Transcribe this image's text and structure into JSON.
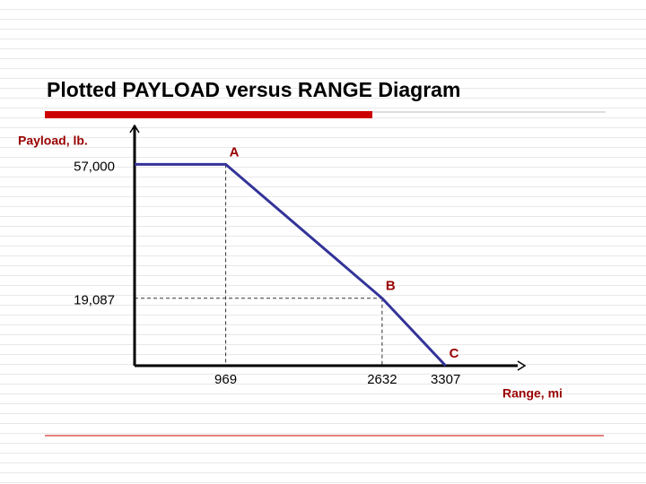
{
  "chart_data": {
    "type": "line",
    "title": "Plotted PAYLOAD versus RANGE Diagram",
    "y_label": "Payload, lb.",
    "x_label": "Range, mi",
    "x": [
      0,
      969,
      2632,
      3307
    ],
    "series": [
      {
        "color": "#333399",
        "values": [
          57000,
          57000,
          19087,
          0
        ],
        "point_labels": [
          null,
          "A",
          "B",
          "C"
        ]
      }
    ],
    "xlim": [
      0,
      4150
    ],
    "ylim": [
      0,
      68000
    ],
    "xticks": [
      969,
      2632,
      3307
    ],
    "yticks": [
      {
        "value": 57000,
        "label": "57,000"
      },
      {
        "value": 19087,
        "label": "19,087"
      }
    ],
    "guides": "dashed"
  }
}
